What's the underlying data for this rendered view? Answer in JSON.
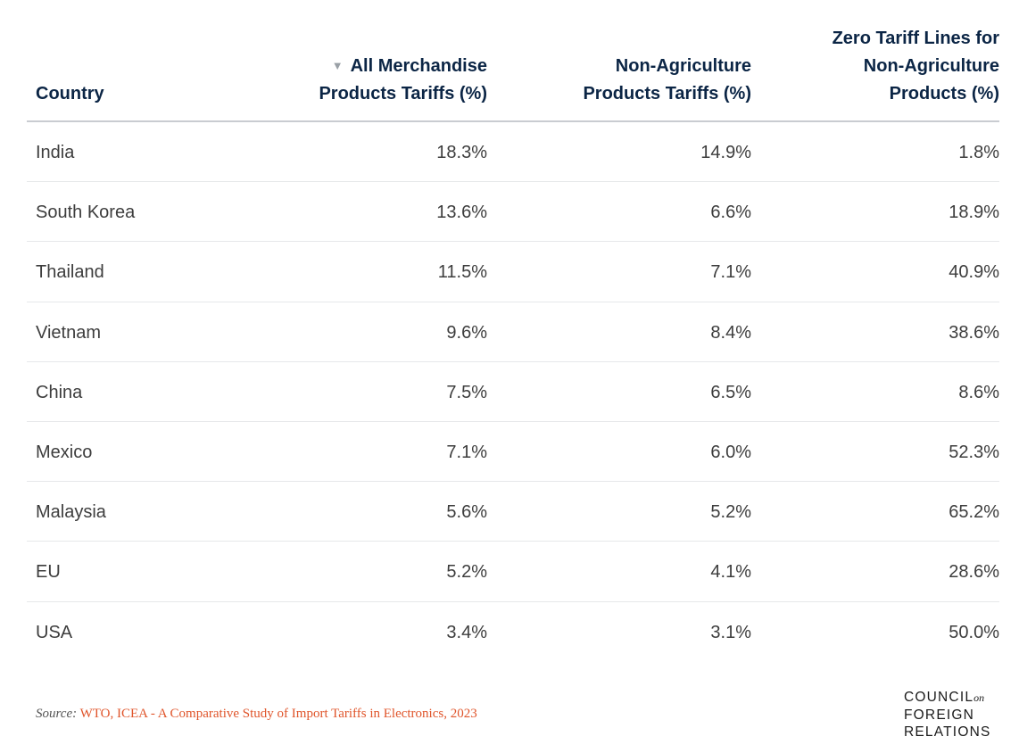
{
  "chart_data": {
    "type": "table",
    "columns": [
      "Country",
      "All Merchandise Products Tariffs (%)",
      "Non-Agriculture Products Tariffs (%)",
      "Zero Tariff Lines for Non-Agriculture Products (%)"
    ],
    "header_lines": {
      "country": [
        "Country"
      ],
      "c1": [
        "All Merchandise",
        "Products Tariffs (%)"
      ],
      "c2": [
        "Non-Agriculture",
        "Products Tariffs (%)"
      ],
      "c3": [
        "Zero Tariff Lines for",
        "Non-Agriculture",
        "Products (%)"
      ]
    },
    "sort": {
      "column": 1,
      "direction": "descending"
    },
    "rows": [
      [
        "India",
        "18.3%",
        "14.9%",
        "1.8%"
      ],
      [
        "South Korea",
        "13.6%",
        "6.6%",
        "18.9%"
      ],
      [
        "Thailand",
        "11.5%",
        "7.1%",
        "40.9%"
      ],
      [
        "Vietnam",
        "9.6%",
        "8.4%",
        "38.6%"
      ],
      [
        "China",
        "7.5%",
        "6.5%",
        "8.6%"
      ],
      [
        "Mexico",
        "7.1%",
        "6.0%",
        "52.3%"
      ],
      [
        "Malaysia",
        "5.6%",
        "5.2%",
        "65.2%"
      ],
      [
        "EU",
        "5.2%",
        "4.1%",
        "28.6%"
      ],
      [
        "USA",
        "3.4%",
        "3.1%",
        "50.0%"
      ]
    ],
    "values": {
      "all_merchandise": [
        18.3,
        13.6,
        11.5,
        9.6,
        7.5,
        7.1,
        5.6,
        5.2,
        3.4
      ],
      "non_agriculture": [
        14.9,
        6.6,
        7.1,
        8.4,
        6.5,
        6.0,
        5.2,
        4.1,
        3.1
      ],
      "zero_tariff_lines_non_agriculture": [
        1.8,
        18.9,
        40.9,
        38.6,
        8.6,
        52.3,
        65.2,
        28.6,
        50.0
      ]
    }
  },
  "source": {
    "label": "Source:",
    "text": "WTO, ICEA - A Comparative Study of Import Tariffs in Electronics, 2023"
  },
  "logo": {
    "line1": "COUNCIL",
    "line1_suffix": "on",
    "line2": "FOREIGN",
    "line3": "RELATIONS"
  },
  "colors": {
    "header_text": "#0b2545",
    "body_text": "#3d3d3d",
    "source_link": "#e0552b",
    "sort_icon": "#9aa0a6"
  },
  "icons": {
    "sort": "sort-descending-icon"
  }
}
